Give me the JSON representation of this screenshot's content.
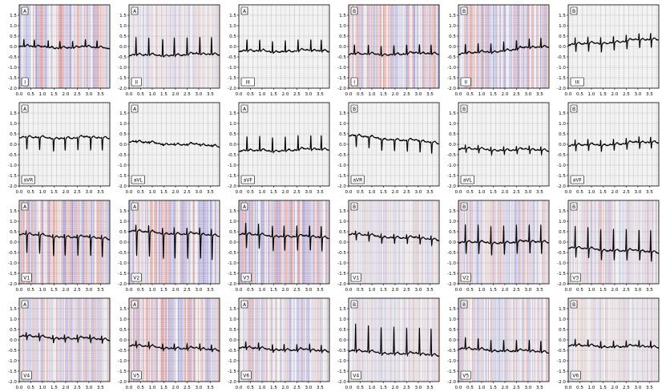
{
  "figure": {
    "colors": {
      "background": "#ffffff",
      "trace": "#000000",
      "grid_minor": "#e2e2e2",
      "grid_major": "#bdbdbd",
      "attr_positive": "#e8291e",
      "attr_negative": "#2630e3"
    }
  },
  "chart_data": [
    {
      "type": "line",
      "panel": "A",
      "lead": "I",
      "xlim": [
        0,
        3.9
      ],
      "ylim": [
        -2,
        2
      ],
      "xticks": [
        "0.0",
        "0.5",
        "1.0",
        "1.5",
        "2.0",
        "2.5",
        "3.0",
        "3.5"
      ],
      "yticks": [
        "-2.0",
        "-1.5",
        "-1.0",
        "-0.5",
        "0.0",
        "0.5",
        "1.0",
        "1.5"
      ],
      "grid": true,
      "baseline": [
        -0.03,
        -0.07
      ],
      "r_peaks": [
        0.2,
        0.65,
        1.25,
        1.75,
        2.3,
        2.85,
        3.35
      ],
      "r_amp": 0.35,
      "s_amp": 0.02,
      "attribution": "strong"
    },
    {
      "type": "line",
      "panel": "A",
      "lead": "II",
      "xlim": [
        0,
        3.9
      ],
      "ylim": [
        -2,
        2
      ],
      "xticks": [
        "0.0",
        "0.5",
        "1.0",
        "1.5",
        "2.0",
        "2.5",
        "3.0",
        "3.5"
      ],
      "yticks": [
        "-2.0",
        "-1.5",
        "-1.0",
        "-0.5",
        "0.0",
        "0.5",
        "1.0",
        "1.5"
      ],
      "grid": true,
      "baseline": [
        -0.45,
        -0.38
      ],
      "r_peaks": [
        0.3,
        0.85,
        1.45,
        1.95,
        2.5,
        3.05,
        3.55
      ],
      "r_amp": 0.85,
      "s_amp": 0.05,
      "attribution": "faint"
    },
    {
      "type": "line",
      "panel": "A",
      "lead": "III",
      "xlim": [
        0,
        3.9
      ],
      "ylim": [
        -2,
        2
      ],
      "xticks": [
        "0.0",
        "0.5",
        "1.0",
        "1.5",
        "2.0",
        "2.5",
        "3.0",
        "3.5"
      ],
      "yticks": [
        "-2.0",
        "-1.5",
        "-1.0",
        "-0.5",
        "0.0",
        "0.5",
        "1.0",
        "1.5"
      ],
      "grid": true,
      "baseline": [
        -0.25,
        -0.22
      ],
      "r_peaks": [
        0.35,
        0.9,
        1.45,
        2.0,
        2.55,
        3.1,
        3.55
      ],
      "r_amp": 0.55,
      "s_amp": 0.05,
      "attribution": "none"
    },
    {
      "type": "line",
      "panel": "B",
      "lead": "I",
      "xlim": [
        0,
        3.9
      ],
      "ylim": [
        -2,
        2
      ],
      "xticks": [
        "0.0",
        "0.5",
        "1.0",
        "1.5",
        "2.0",
        "2.5",
        "3.0",
        "3.5"
      ],
      "yticks": [
        "-2.0",
        "-1.5",
        "-1.0",
        "-0.5",
        "0.0",
        "0.5",
        "1.0",
        "1.5"
      ],
      "grid": true,
      "baseline": [
        -0.4,
        -0.35
      ],
      "r_peaks": [
        0.25,
        0.85,
        1.4,
        1.95,
        2.5,
        3.05,
        3.55
      ],
      "r_amp": 0.45,
      "s_amp": 0.05,
      "attribution": "strong"
    },
    {
      "type": "line",
      "panel": "B",
      "lead": "II",
      "xlim": [
        0,
        3.9
      ],
      "ylim": [
        -2,
        2
      ],
      "xticks": [
        "0.0",
        "0.5",
        "1.0",
        "1.5",
        "2.0",
        "2.5",
        "3.0",
        "3.5"
      ],
      "yticks": [
        "-2.0",
        "-1.5",
        "-1.0",
        "-0.5",
        "0.0",
        "0.5",
        "1.0",
        "1.5"
      ],
      "grid": true,
      "baseline": [
        -0.4,
        0.0
      ],
      "r_peaks": [
        0.3,
        0.85,
        1.4,
        1.95,
        2.5,
        3.05,
        3.55
      ],
      "r_amp": 0.45,
      "s_amp": 0.05,
      "attribution": "strong"
    },
    {
      "type": "line",
      "panel": "B",
      "lead": "III",
      "xlim": [
        0,
        3.9
      ],
      "ylim": [
        -2,
        2
      ],
      "xticks": [
        "0.0",
        "0.5",
        "1.0",
        "1.5",
        "2.0",
        "2.5",
        "3.0",
        "3.5"
      ],
      "yticks": [
        "-2.0",
        "-1.5",
        "-1.0",
        "-0.5",
        "0.0",
        "0.5",
        "1.0",
        "1.5"
      ],
      "grid": true,
      "baseline": [
        0.05,
        0.35
      ],
      "r_peaks": [
        0.3,
        0.85,
        1.4,
        1.95,
        2.5,
        3.05,
        3.55
      ],
      "r_amp": 0.35,
      "s_amp": 0.4,
      "attribution": "none"
    },
    {
      "type": "line",
      "panel": "A",
      "lead": "aVR",
      "xlim": [
        0,
        3.9
      ],
      "ylim": [
        -2,
        2
      ],
      "xticks": [
        "0.0",
        "0.5",
        "1.0",
        "1.5",
        "2.0",
        "2.5",
        "3.0",
        "3.5"
      ],
      "yticks": [
        "-2.0",
        "-1.5",
        "-1.0",
        "-0.5",
        "0.0",
        "0.5",
        "1.0",
        "1.5"
      ],
      "grid": true,
      "baseline": [
        0.3,
        0.3
      ],
      "r_peaks": [
        0.3,
        0.85,
        1.45,
        1.95,
        2.5,
        3.05,
        3.55
      ],
      "r_amp": 0.05,
      "s_amp": 0.6,
      "attribution": "none"
    },
    {
      "type": "line",
      "panel": "A",
      "lead": "aVL",
      "xlim": [
        0,
        3.9
      ],
      "ylim": [
        -2,
        2
      ],
      "xticks": [
        "0.0",
        "0.5",
        "1.0",
        "1.5",
        "2.0",
        "2.5",
        "3.0",
        "3.5"
      ],
      "yticks": [
        "-2.0",
        "-1.5",
        "-1.0",
        "-0.5",
        "0.0",
        "0.5",
        "1.0",
        "1.5"
      ],
      "grid": true,
      "baseline": [
        0.1,
        -0.1
      ],
      "r_peaks": [
        0.3,
        0.85,
        1.45,
        1.95,
        2.5,
        3.05,
        3.55
      ],
      "r_amp": 0.05,
      "s_amp": 0.05,
      "attribution": "none"
    },
    {
      "type": "line",
      "panel": "A",
      "lead": "aVF",
      "xlim": [
        0,
        3.9
      ],
      "ylim": [
        -2,
        2
      ],
      "xticks": [
        "0.0",
        "0.5",
        "1.0",
        "1.5",
        "2.0",
        "2.5",
        "3.0",
        "3.5"
      ],
      "yticks": [
        "-2.0",
        "-1.5",
        "-1.0",
        "-0.5",
        "0.0",
        "0.5",
        "1.0",
        "1.5"
      ],
      "grid": true,
      "baseline": [
        -0.35,
        -0.25
      ],
      "r_peaks": [
        0.35,
        0.9,
        1.45,
        2.0,
        2.55,
        3.1,
        3.55
      ],
      "r_amp": 0.7,
      "s_amp": 0.05,
      "attribution": "none"
    },
    {
      "type": "line",
      "panel": "B",
      "lead": "aVR",
      "xlim": [
        0,
        3.9
      ],
      "ylim": [
        -2,
        2
      ],
      "xticks": [
        "0.0",
        "0.5",
        "1.0",
        "1.5",
        "2.0",
        "2.5",
        "3.0",
        "3.5"
      ],
      "yticks": [
        "-2.0",
        "-1.5",
        "-1.0",
        "-0.5",
        "0.0",
        "0.5",
        "1.0",
        "1.5"
      ],
      "grid": true,
      "baseline": [
        0.4,
        0.05
      ],
      "r_peaks": [
        0.3,
        0.85,
        1.4,
        1.95,
        2.5,
        3.05,
        3.55
      ],
      "r_amp": 0.05,
      "s_amp": 0.55,
      "attribution": "none"
    },
    {
      "type": "line",
      "panel": "B",
      "lead": "aVL",
      "xlim": [
        0,
        3.9
      ],
      "ylim": [
        -2,
        2
      ],
      "xticks": [
        "0.0",
        "0.5",
        "1.0",
        "1.5",
        "2.0",
        "2.5",
        "3.0",
        "3.5"
      ],
      "yticks": [
        "-2.0",
        "-1.5",
        "-1.0",
        "-0.5",
        "0.0",
        "0.5",
        "1.0",
        "1.5"
      ],
      "grid": true,
      "baseline": [
        -0.25,
        -0.3
      ],
      "r_peaks": [
        0.3,
        0.85,
        1.4,
        1.95,
        2.5,
        3.05,
        3.55
      ],
      "r_amp": 0.2,
      "s_amp": 0.2,
      "attribution": "none"
    },
    {
      "type": "line",
      "panel": "B",
      "lead": "aVF",
      "xlim": [
        0,
        3.9
      ],
      "ylim": [
        -2,
        2
      ],
      "xticks": [
        "0.0",
        "0.5",
        "1.0",
        "1.5",
        "2.0",
        "2.5",
        "3.0",
        "3.5"
      ],
      "yticks": [
        "-2.0",
        "-1.5",
        "-1.0",
        "-0.5",
        "0.0",
        "0.5",
        "1.0",
        "1.5"
      ],
      "grid": true,
      "baseline": [
        -0.1,
        0.1
      ],
      "r_peaks": [
        0.3,
        0.85,
        1.4,
        1.95,
        2.5,
        3.05,
        3.55
      ],
      "r_amp": 0.3,
      "s_amp": 0.3,
      "attribution": "none"
    },
    {
      "type": "line",
      "panel": "A",
      "lead": "V1",
      "xlim": [
        0,
        3.9
      ],
      "ylim": [
        -2,
        2
      ],
      "xticks": [
        "0.0",
        "0.5",
        "1.0",
        "1.5",
        "2.0",
        "2.5",
        "3.0",
        "3.5"
      ],
      "yticks": [
        "-2.0",
        "-1.5",
        "-1.0",
        "-0.5",
        "0.0",
        "0.5",
        "1.0",
        "1.5"
      ],
      "grid": true,
      "baseline": [
        0.35,
        0.15
      ],
      "r_peaks": [
        0.3,
        0.85,
        1.45,
        1.95,
        2.5,
        3.05,
        3.55
      ],
      "r_amp": 0.2,
      "s_amp": 0.9,
      "attribution": "strong"
    },
    {
      "type": "line",
      "panel": "A",
      "lead": "V2",
      "xlim": [
        0,
        3.9
      ],
      "ylim": [
        -2,
        2
      ],
      "xticks": [
        "0.0",
        "0.5",
        "1.0",
        "1.5",
        "2.0",
        "2.5",
        "3.0",
        "3.5"
      ],
      "yticks": [
        "-2.0",
        "-1.5",
        "-1.0",
        "-0.5",
        "0.0",
        "0.5",
        "1.0",
        "1.5"
      ],
      "grid": true,
      "baseline": [
        0.5,
        0.3
      ],
      "r_peaks": [
        0.3,
        0.85,
        1.45,
        1.95,
        2.5,
        3.05,
        3.55
      ],
      "r_amp": 0.4,
      "s_amp": 1.2,
      "attribution": "strong"
    },
    {
      "type": "line",
      "panel": "A",
      "lead": "V3",
      "xlim": [
        0,
        3.9
      ],
      "ylim": [
        -2,
        2
      ],
      "xticks": [
        "0.0",
        "0.5",
        "1.0",
        "1.5",
        "2.0",
        "2.5",
        "3.0",
        "3.5"
      ],
      "yticks": [
        "-2.0",
        "-1.5",
        "-1.0",
        "-0.5",
        "0.0",
        "0.5",
        "1.0",
        "1.5"
      ],
      "grid": true,
      "baseline": [
        0.35,
        0.2
      ],
      "r_peaks": [
        0.3,
        0.85,
        1.45,
        1.95,
        2.5,
        3.05,
        3.55
      ],
      "r_amp": 0.6,
      "s_amp": 0.7,
      "attribution": "strong"
    },
    {
      "type": "line",
      "panel": "B",
      "lead": "V1",
      "xlim": [
        0,
        3.9
      ],
      "ylim": [
        -2,
        2
      ],
      "xticks": [
        "0.0",
        "0.5",
        "1.0",
        "1.5",
        "2.0",
        "2.5",
        "3.0",
        "3.5"
      ],
      "yticks": [
        "-2.0",
        "-1.5",
        "-1.0",
        "-0.5",
        "0.0",
        "0.5",
        "1.0",
        "1.5"
      ],
      "grid": true,
      "baseline": [
        0.35,
        0.1
      ],
      "r_peaks": [
        0.3,
        0.85,
        1.4,
        1.95,
        2.5,
        3.05,
        3.55
      ],
      "r_amp": 0.2,
      "s_amp": 0.3,
      "attribution": "faint"
    },
    {
      "type": "line",
      "panel": "B",
      "lead": "V2",
      "xlim": [
        0,
        3.9
      ],
      "ylim": [
        -2,
        2
      ],
      "xticks": [
        "0.0",
        "0.5",
        "1.0",
        "1.5",
        "2.0",
        "2.5",
        "3.0",
        "3.5"
      ],
      "yticks": [
        "-2.0",
        "-1.5",
        "-1.0",
        "-0.5",
        "0.0",
        "0.5",
        "1.0",
        "1.5"
      ],
      "grid": true,
      "baseline": [
        -0.05,
        0.0
      ],
      "r_peaks": [
        0.3,
        0.85,
        1.4,
        1.95,
        2.5,
        3.05,
        3.55
      ],
      "r_amp": 0.9,
      "s_amp": 0.6,
      "attribution": "medium"
    },
    {
      "type": "line",
      "panel": "B",
      "lead": "V3",
      "xlim": [
        0,
        3.9
      ],
      "ylim": [
        -2,
        2
      ],
      "xticks": [
        "0.0",
        "0.5",
        "1.0",
        "1.5",
        "2.0",
        "2.5",
        "3.0",
        "3.5"
      ],
      "yticks": [
        "-2.0",
        "-1.5",
        "-1.0",
        "-0.5",
        "0.0",
        "0.5",
        "1.0",
        "1.5"
      ],
      "grid": true,
      "baseline": [
        -0.3,
        -0.5
      ],
      "r_peaks": [
        0.3,
        0.85,
        1.4,
        1.95,
        2.5,
        3.05,
        3.55
      ],
      "r_amp": 1.1,
      "s_amp": 0.5,
      "attribution": "medium"
    },
    {
      "type": "line",
      "panel": "A",
      "lead": "V4",
      "xlim": [
        0,
        3.9
      ],
      "ylim": [
        -2,
        2
      ],
      "xticks": [
        "0.0",
        "0.5",
        "1.0",
        "1.5",
        "2.0",
        "2.5",
        "3.0",
        "3.5"
      ],
      "yticks": [
        "-2.0",
        "-1.5",
        "-1.0",
        "-0.5",
        "0.0",
        "0.5",
        "1.0",
        "1.5"
      ],
      "grid": true,
      "baseline": [
        0.15,
        0.0
      ],
      "r_peaks": [
        0.3,
        0.85,
        1.45,
        1.95,
        2.5,
        3.05,
        3.55
      ],
      "r_amp": 0.2,
      "s_amp": 0.2,
      "attribution": "medium"
    },
    {
      "type": "line",
      "panel": "A",
      "lead": "V5",
      "xlim": [
        0,
        3.9
      ],
      "ylim": [
        -2,
        2
      ],
      "xticks": [
        "0.0",
        "0.5",
        "1.0",
        "1.5",
        "2.0",
        "2.5",
        "3.0",
        "3.5"
      ],
      "yticks": [
        "-2.0",
        "-1.5",
        "-1.0",
        "-0.5",
        "0.0",
        "0.5",
        "1.0",
        "1.5"
      ],
      "grid": true,
      "baseline": [
        -0.3,
        -0.5
      ],
      "r_peaks": [
        0.3,
        0.85,
        1.45,
        1.95,
        2.5,
        3.05,
        3.55
      ],
      "r_amp": 0.25,
      "s_amp": 0.1,
      "attribution": "strong"
    },
    {
      "type": "line",
      "panel": "A",
      "lead": "V6",
      "xlim": [
        0,
        3.9
      ],
      "ylim": [
        -2,
        2
      ],
      "xticks": [
        "0.0",
        "0.5",
        "1.0",
        "1.5",
        "2.0",
        "2.5",
        "3.0",
        "3.5"
      ],
      "yticks": [
        "-2.0",
        "-1.5",
        "-1.0",
        "-0.5",
        "0.0",
        "0.5",
        "1.0",
        "1.5"
      ],
      "grid": true,
      "baseline": [
        -0.4,
        -0.55
      ],
      "r_peaks": [
        0.3,
        0.85,
        1.45,
        1.95,
        2.5,
        3.05,
        3.55
      ],
      "r_amp": 0.3,
      "s_amp": 0.1,
      "attribution": "medium"
    },
    {
      "type": "line",
      "panel": "B",
      "lead": "V4",
      "xlim": [
        0,
        3.9
      ],
      "ylim": [
        -2,
        2
      ],
      "xticks": [
        "0.0",
        "0.5",
        "1.0",
        "1.5",
        "2.0",
        "2.5",
        "3.0",
        "3.5"
      ],
      "yticks": [
        "-2.0",
        "-1.5",
        "-1.0",
        "-0.5",
        "0.0",
        "0.5",
        "1.0",
        "1.5"
      ],
      "grid": true,
      "baseline": [
        -0.55,
        -0.75
      ],
      "r_peaks": [
        0.3,
        0.85,
        1.4,
        1.95,
        2.5,
        3.05,
        3.55
      ],
      "r_amp": 1.3,
      "s_amp": 0.1,
      "attribution": "faint"
    },
    {
      "type": "line",
      "panel": "B",
      "lead": "V5",
      "xlim": [
        0,
        3.9
      ],
      "ylim": [
        -2,
        2
      ],
      "xticks": [
        "0.0",
        "0.5",
        "1.0",
        "1.5",
        "2.0",
        "2.5",
        "3.0",
        "3.5"
      ],
      "yticks": [
        "-2.0",
        "-1.5",
        "-1.0",
        "-0.5",
        "0.0",
        "0.5",
        "1.0",
        "1.5"
      ],
      "grid": true,
      "baseline": [
        -0.45,
        -0.6
      ],
      "r_peaks": [
        0.3,
        0.85,
        1.4,
        1.95,
        2.5,
        3.05,
        3.55
      ],
      "r_amp": 0.55,
      "s_amp": 0.05,
      "attribution": "medium"
    },
    {
      "type": "line",
      "panel": "B",
      "lead": "V6",
      "xlim": [
        0,
        3.9
      ],
      "ylim": [
        -2,
        2
      ],
      "xticks": [
        "0.0",
        "0.5",
        "1.0",
        "1.5",
        "2.0",
        "2.5",
        "3.0",
        "3.5"
      ],
      "yticks": [
        "-2.0",
        "-1.5",
        "-1.0",
        "-0.5",
        "0.0",
        "0.5",
        "1.0",
        "1.5"
      ],
      "grid": true,
      "baseline": [
        -0.3,
        -0.35
      ],
      "r_peaks": [
        0.3,
        0.85,
        1.4,
        1.95,
        2.5,
        3.05,
        3.55
      ],
      "r_amp": 0.3,
      "s_amp": 0.05,
      "attribution": "faint"
    }
  ]
}
